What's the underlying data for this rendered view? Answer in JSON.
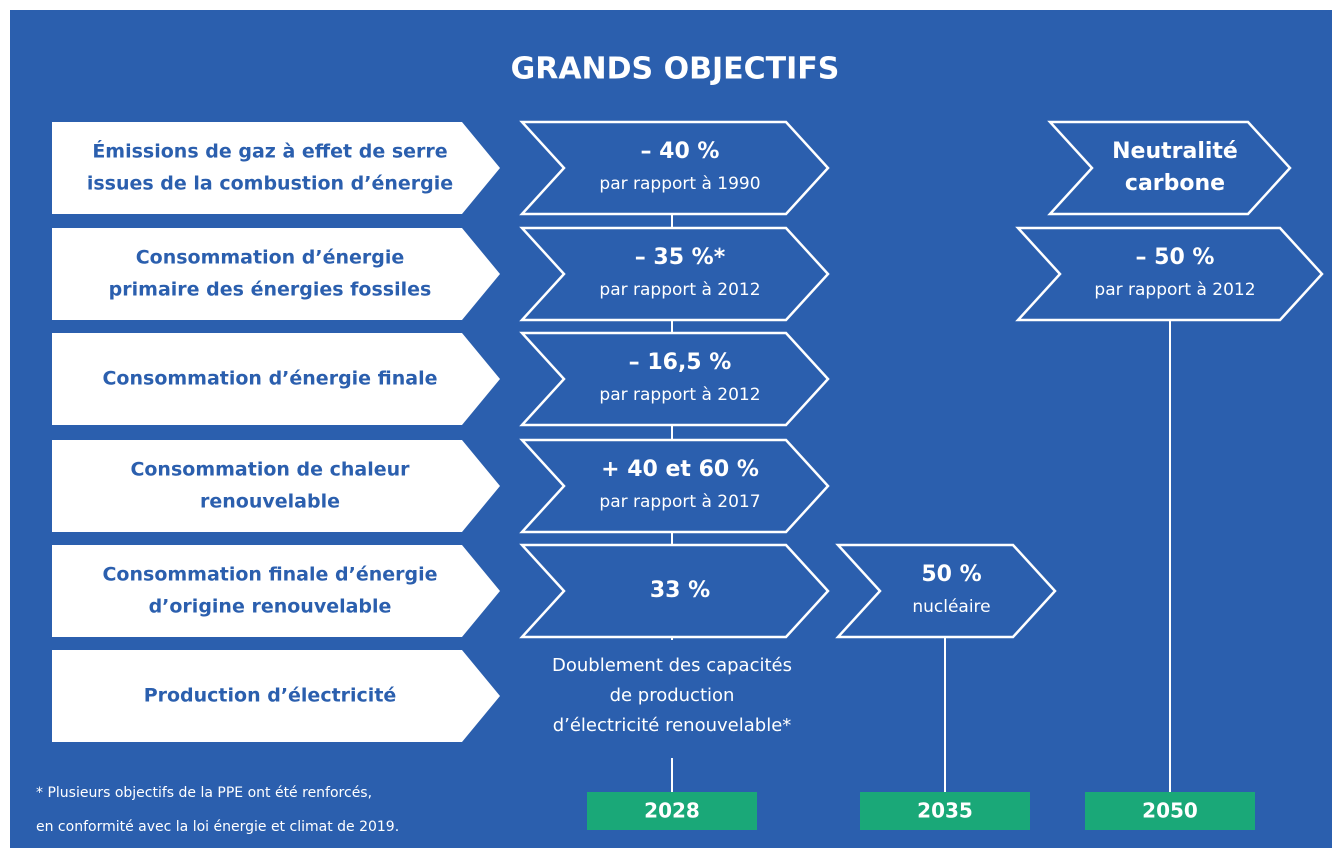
{
  "title": "GRANDS OBJECTIFS",
  "rows": [
    {
      "label": [
        "Émissions de gaz à effet de serre",
        "issues de la combustion d’énergie"
      ]
    },
    {
      "label": [
        "Consommation d’énergie",
        "primaire des énergies fossiles"
      ]
    },
    {
      "label": [
        "Consommation d’énergie finale"
      ]
    },
    {
      "label": [
        "Consommation de chaleur",
        "renouvelable"
      ]
    },
    {
      "label": [
        "Consommation finale d’énergie",
        "d’origine renouvelable"
      ]
    },
    {
      "label": [
        "Production d’électricité"
      ]
    }
  ],
  "columns": [
    {
      "year": "2028",
      "targets": [
        {
          "value": [
            "– 40 %"
          ],
          "note": [
            "par rapport à 1990"
          ]
        },
        {
          "value": [
            "– 35 %*"
          ],
          "note": [
            "par rapport à 2012"
          ]
        },
        {
          "value": [
            "– 16,5 %"
          ],
          "note": [
            "par rapport à 2012"
          ]
        },
        {
          "value": [
            "+ 40 et 60 %"
          ],
          "note": [
            "par rapport à 2017"
          ]
        },
        {
          "value": [
            "33 %"
          ],
          "note": []
        },
        {
          "value": [],
          "note": [
            "Doublement des capacités",
            "de production",
            "d’électricité renouvelable*"
          ]
        }
      ]
    },
    {
      "year": "2035",
      "targets": [
        null,
        null,
        null,
        null,
        {
          "value": [
            "50 %"
          ],
          "note": [
            "nucléaire"
          ]
        },
        null
      ]
    },
    {
      "year": "2050",
      "targets": [
        {
          "value": [
            "Neutralité",
            "carbone"
          ],
          "note": []
        },
        {
          "value": [
            "– 50 %"
          ],
          "note": [
            "par rapport à 2012"
          ]
        },
        null,
        null,
        null,
        null
      ]
    }
  ],
  "footnote": [
    "* Plusieurs objectifs de la PPE ont été renforcés,",
    "en conformité avec la loi énergie et climat de 2019."
  ]
}
